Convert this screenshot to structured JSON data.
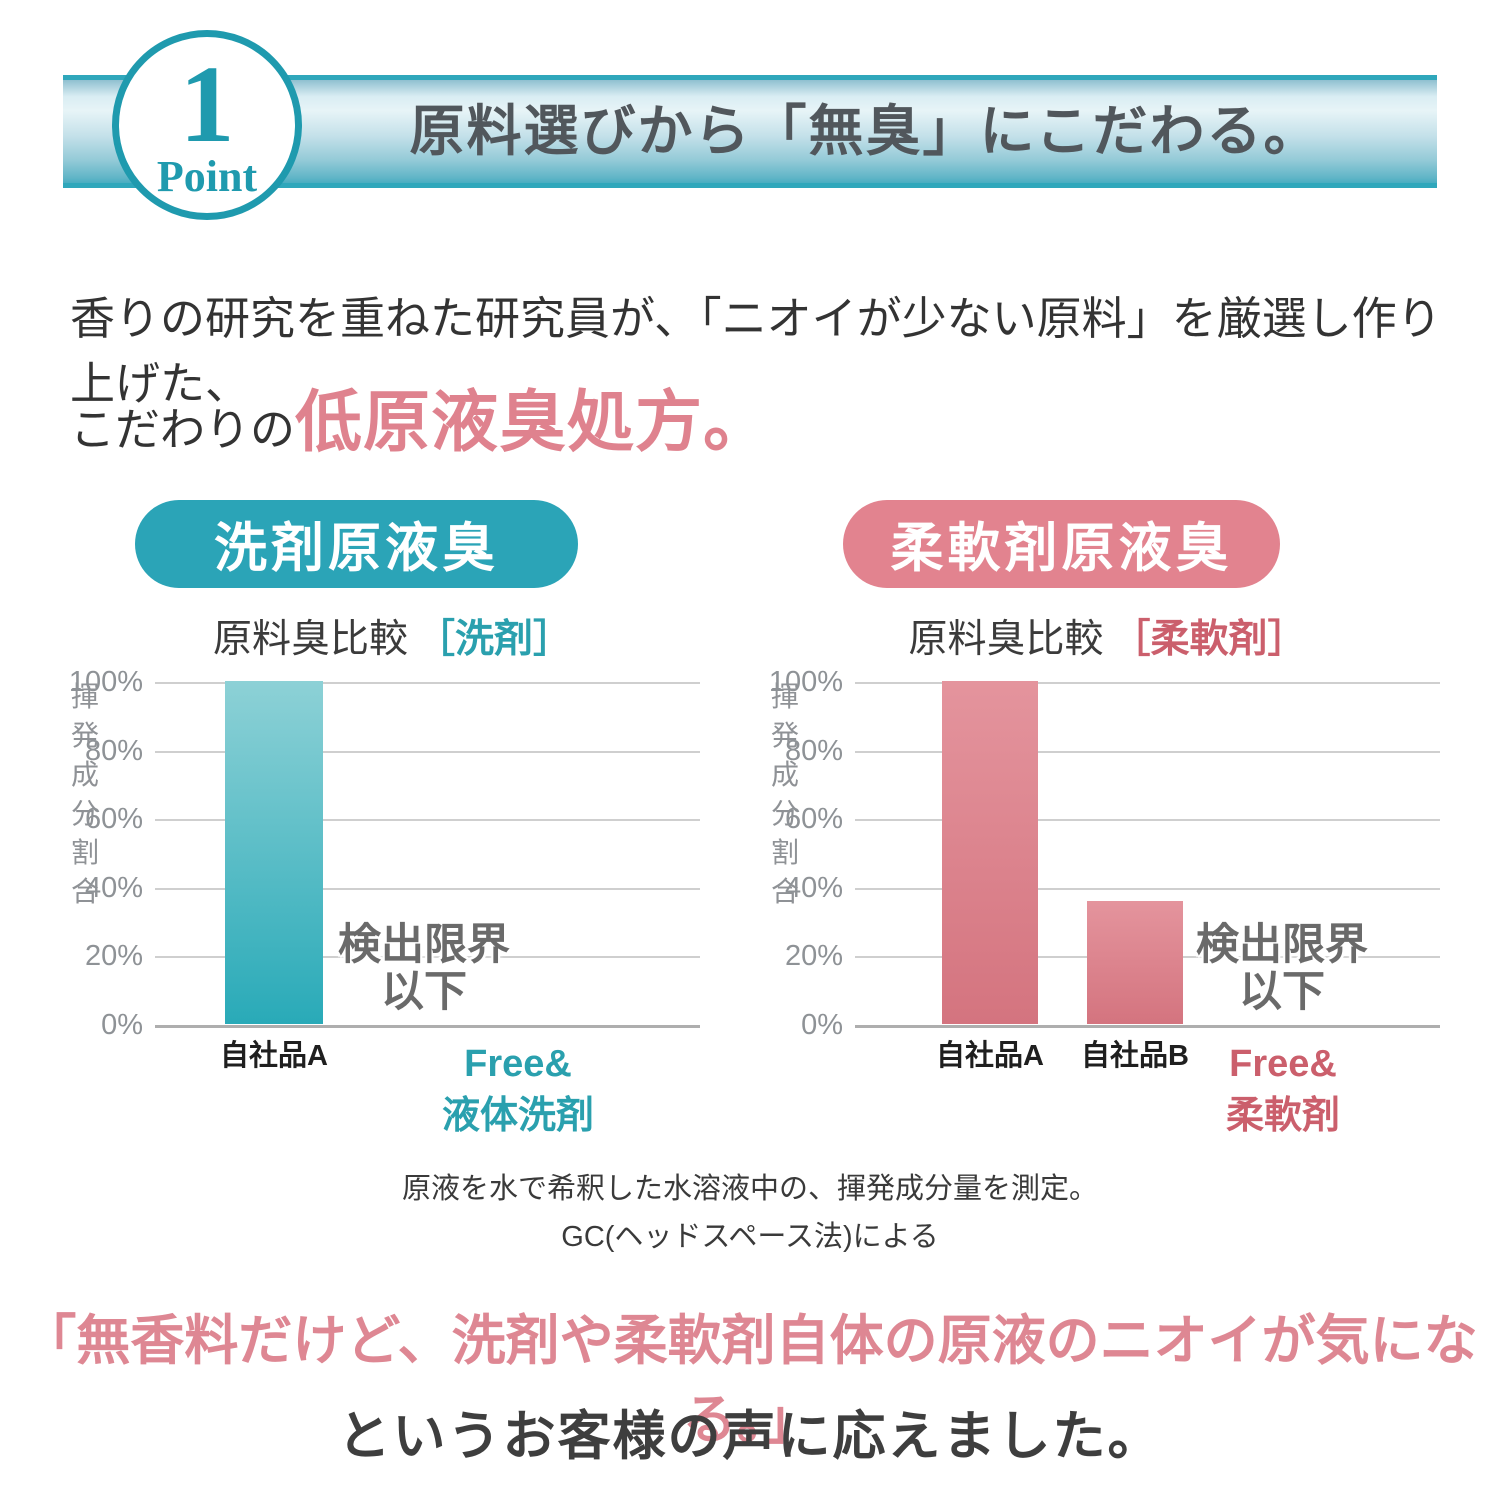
{
  "header": {
    "badge_number": "1",
    "badge_label": "Point",
    "banner_title": "原料選びから「無臭」にこだわる。"
  },
  "intro": {
    "line1": "香りの研究を重ねた研究員が、「ニオイが少ない原料」を厳選し作り上げた、",
    "line2_prefix": "こだわりの",
    "line2_highlight": "低原液臭処方。"
  },
  "chart_data": [
    {
      "type": "bar",
      "pill_label": "洗剤原液臭",
      "title": "原料臭比較［洗剤］",
      "title_plain": "原料臭比較",
      "title_bracket": "［洗剤］",
      "ylabel": "揮発成分割合",
      "yticks": [
        "100%",
        "80%",
        "60%",
        "40%",
        "20%",
        "0%"
      ],
      "ylim": [
        0,
        100
      ],
      "categories": [
        "自社品A",
        "Free&液体洗剤"
      ],
      "category_lines": [
        [
          "自社品A"
        ],
        [
          "Free&",
          "液体洗剤"
        ]
      ],
      "category_emphasis": [
        false,
        true
      ],
      "values": [
        100,
        0
      ],
      "zero_annotation_lines": [
        "検出限界",
        "以下"
      ],
      "accent": "#2ba4b7",
      "accent_text": "#2aa0ae",
      "bar_gradient_top": "#8dd1d6",
      "bar_gradient_bottom": "#29aab8",
      "grid": true,
      "legend": false
    },
    {
      "type": "bar",
      "pill_label": "柔軟剤原液臭",
      "title": "原料臭比較［柔軟剤］",
      "title_plain": "原料臭比較",
      "title_bracket": "［柔軟剤］",
      "ylabel": "揮発成分割合",
      "yticks": [
        "100%",
        "80%",
        "60%",
        "40%",
        "20%",
        "0%"
      ],
      "ylim": [
        0,
        100
      ],
      "categories": [
        "自社品A",
        "自社品B",
        "Free&柔軟剤"
      ],
      "category_lines": [
        [
          "自社品A"
        ],
        [
          "自社品B"
        ],
        [
          "Free&",
          "柔軟剤"
        ]
      ],
      "category_emphasis": [
        false,
        false,
        true
      ],
      "values": [
        100,
        36,
        0
      ],
      "zero_annotation_lines": [
        "検出限界",
        "以下"
      ],
      "accent": "#e2838f",
      "accent_text": "#cb5f6c",
      "bar_gradient_top": "#e4949d",
      "bar_gradient_bottom": "#d4747f",
      "grid": true,
      "legend": false
    }
  ],
  "footnote": {
    "line1": "原液を水で希釈した水溶液中の、揮発成分量を測定。",
    "line2": "GC(ヘッドスペース法)による"
  },
  "bottom": {
    "quote": "「無香料だけど、洗剤や柔軟剤自体の原液のニオイが気になる。」",
    "reply": "というお客様の声に応えました。"
  },
  "colors": {
    "teal": "#2ba4b7",
    "pink": "#e2838f",
    "banner_border": "#2fa7bb",
    "badge": "#1f9aae",
    "text_dark": "#3b3b3b",
    "text_gray": "#8f9296",
    "gridline": "#cfcfcf",
    "axis_line": "#aeaeae",
    "annotation_gray": "#6a6a6a"
  }
}
